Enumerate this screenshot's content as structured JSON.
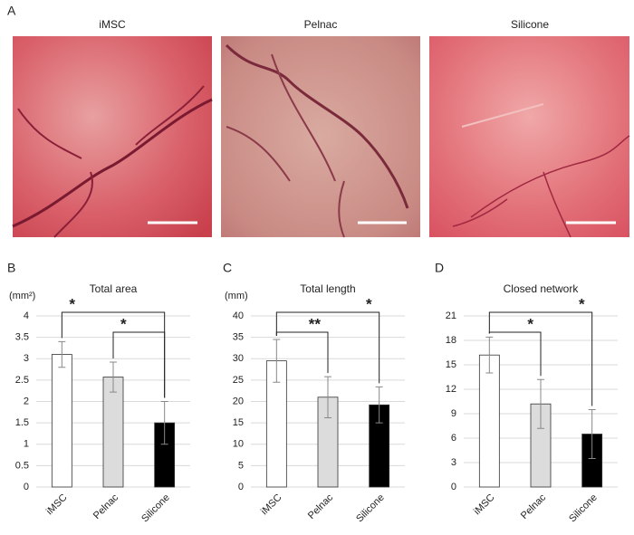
{
  "photo_panel": {
    "label": "A",
    "titles": [
      "iMSC",
      "Pelnac",
      "Silicone"
    ]
  },
  "chart_data": [
    {
      "type": "bar",
      "panel_label": "B",
      "title": "Total area",
      "y_label": "(mm²)",
      "categories": [
        "iMSC",
        "Pelnac",
        "Silicone"
      ],
      "values": [
        3.1,
        2.57,
        1.5
      ],
      "errors": [
        0.3,
        0.35,
        0.5
      ],
      "colors": [
        "#ffffff",
        "#dcdcdc",
        "#000000"
      ],
      "ylim": [
        0,
        4
      ],
      "yticks": [
        0,
        0.5,
        1,
        1.5,
        2,
        2.5,
        3,
        3.5,
        4
      ],
      "grid": true,
      "significance": [
        {
          "pair": [
            "iMSC",
            "Silicone"
          ],
          "label": "*"
        },
        {
          "pair": [
            "Pelnac",
            "Silicone"
          ],
          "label": "*"
        }
      ]
    },
    {
      "type": "bar",
      "panel_label": "C",
      "title": "Total length",
      "y_label": "(mm)",
      "categories": [
        "iMSC",
        "Pelnac",
        "Silicone"
      ],
      "values": [
        29.5,
        21,
        19.2
      ],
      "errors": [
        5,
        4.8,
        4.2
      ],
      "colors": [
        "#ffffff",
        "#dcdcdc",
        "#000000"
      ],
      "ylim": [
        0,
        40
      ],
      "yticks": [
        0,
        5,
        10,
        15,
        20,
        25,
        30,
        35,
        40
      ],
      "grid": true,
      "significance": [
        {
          "pair": [
            "iMSC",
            "Silicone"
          ],
          "label": "*"
        },
        {
          "pair": [
            "iMSC",
            "Pelnac"
          ],
          "label": "**"
        }
      ]
    },
    {
      "type": "bar",
      "panel_label": "D",
      "title": "Closed network",
      "categories": [
        "iMSC",
        "Pelnac",
        "Silicone"
      ],
      "values": [
        16.2,
        10.2,
        6.5
      ],
      "errors": [
        2.2,
        3,
        3
      ],
      "colors": [
        "#ffffff",
        "#dcdcdc",
        "#000000"
      ],
      "ylim": [
        0,
        21
      ],
      "yticks": [
        0,
        3,
        6,
        9,
        12,
        15,
        18,
        21
      ],
      "grid": true,
      "significance": [
        {
          "pair": [
            "iMSC",
            "Silicone"
          ],
          "label": "*"
        },
        {
          "pair": [
            "iMSC",
            "Pelnac"
          ],
          "label": "*"
        }
      ]
    }
  ]
}
